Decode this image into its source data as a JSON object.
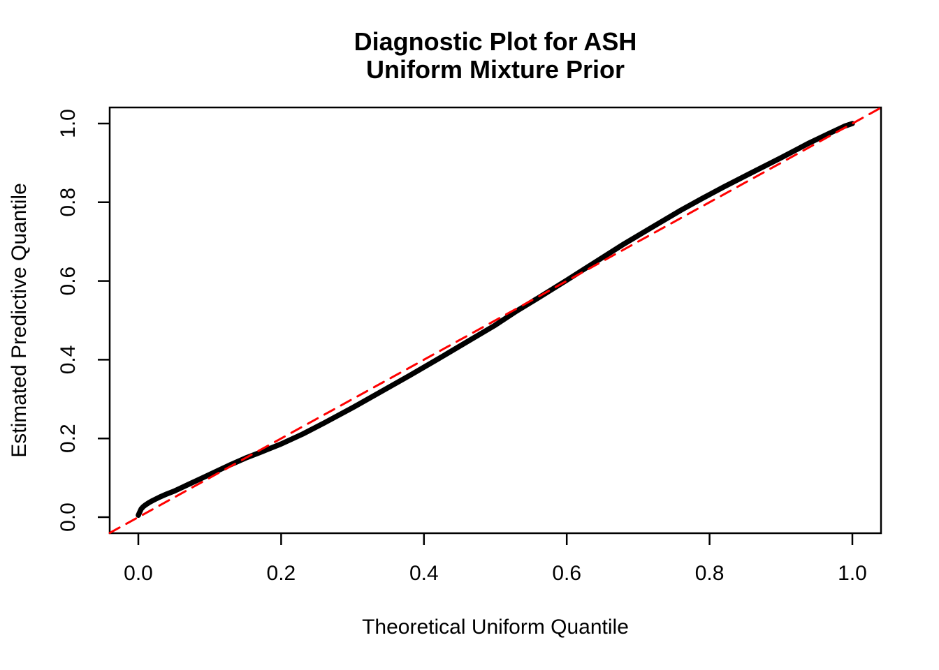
{
  "header": {
    "title_line1": "Diagnostic Plot for ASH",
    "title_line2": "Uniform Mixture Prior"
  },
  "axes": {
    "x": {
      "label": "Theoretical Uniform Quantile",
      "tick_values": [
        0.0,
        0.2,
        0.4,
        0.6,
        0.8,
        1.0
      ],
      "tick_labels": [
        "0.0",
        "0.2",
        "0.4",
        "0.6",
        "0.8",
        "1.0"
      ]
    },
    "y": {
      "label": "Estimated Predictive Quantile",
      "tick_values": [
        0.0,
        0.2,
        0.4,
        0.6,
        0.8,
        1.0
      ],
      "tick_labels": [
        "0.0",
        "0.2",
        "0.4",
        "0.6",
        "0.8",
        "1.0"
      ]
    }
  },
  "colors": {
    "curve": "#000000",
    "reference_line": "#FF0000",
    "frame": "#000000",
    "background": "#FFFFFF"
  },
  "chart_data": {
    "type": "line",
    "title": "Diagnostic Plot for ASH\nUniform Mixture Prior",
    "xlabel": "Theoretical Uniform Quantile",
    "ylabel": "Estimated Predictive Quantile",
    "xlim": [
      0,
      1
    ],
    "ylim": [
      0,
      1
    ],
    "axis_display_range": [
      -0.04,
      1.04
    ],
    "grid": false,
    "legend": "none",
    "series": [
      {
        "name": "estimated-predictive-quantile-curve",
        "style": "thick-point-curve",
        "color": "#000000",
        "points": [
          [
            0.0,
            0.005
          ],
          [
            0.001,
            0.009
          ],
          [
            0.002,
            0.013
          ],
          [
            0.004,
            0.021
          ],
          [
            0.007,
            0.027
          ],
          [
            0.01,
            0.031
          ],
          [
            0.015,
            0.037
          ],
          [
            0.02,
            0.042
          ],
          [
            0.03,
            0.051
          ],
          [
            0.04,
            0.059
          ],
          [
            0.05,
            0.066
          ],
          [
            0.07,
            0.083
          ],
          [
            0.09,
            0.1
          ],
          [
            0.11,
            0.117
          ],
          [
            0.13,
            0.134
          ],
          [
            0.15,
            0.15
          ],
          [
            0.17,
            0.164
          ],
          [
            0.2,
            0.186
          ],
          [
            0.23,
            0.211
          ],
          [
            0.26,
            0.239
          ],
          [
            0.3,
            0.278
          ],
          [
            0.34,
            0.319
          ],
          [
            0.38,
            0.36
          ],
          [
            0.42,
            0.402
          ],
          [
            0.46,
            0.445
          ],
          [
            0.5,
            0.488
          ],
          [
            0.53,
            0.524
          ],
          [
            0.56,
            0.557
          ],
          [
            0.6,
            0.602
          ],
          [
            0.64,
            0.648
          ],
          [
            0.68,
            0.694
          ],
          [
            0.72,
            0.737
          ],
          [
            0.76,
            0.78
          ],
          [
            0.79,
            0.81
          ],
          [
            0.82,
            0.839
          ],
          [
            0.86,
            0.876
          ],
          [
            0.9,
            0.913
          ],
          [
            0.94,
            0.951
          ],
          [
            0.97,
            0.977
          ],
          [
            0.99,
            0.994
          ],
          [
            1.0,
            1.0
          ]
        ]
      },
      {
        "name": "reference-identity-line",
        "style": "dashed-line",
        "color": "#FF0000",
        "points": [
          [
            -0.04,
            -0.04
          ],
          [
            1.04,
            1.04
          ]
        ]
      }
    ]
  }
}
